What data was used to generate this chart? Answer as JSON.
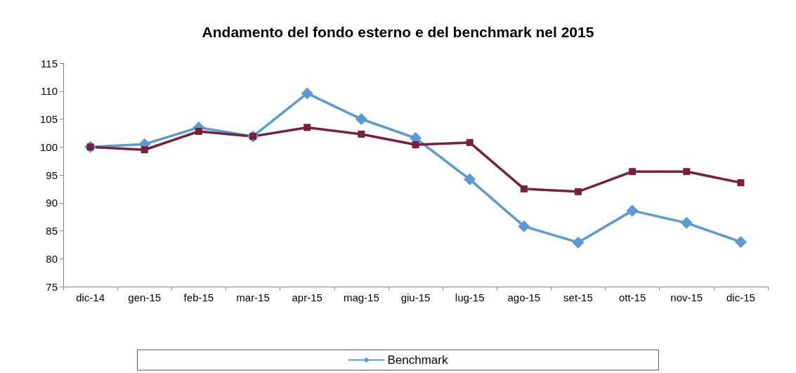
{
  "chart_data": {
    "type": "line",
    "title": "Andamento del fondo esterno e del benchmark nel 2015",
    "categories": [
      "dic-14",
      "gen-15",
      "feb-15",
      "mar-15",
      "apr-15",
      "mag-15",
      "giu-15",
      "lug-15",
      "ago-15",
      "set-15",
      "ott-15",
      "nov-15",
      "dic-15"
    ],
    "series": [
      {
        "name": "Benchmark",
        "color": "#5b9bd5",
        "marker": "diamond",
        "values": [
          100,
          100.5,
          103.5,
          101.9,
          109.6,
          105,
          101.6,
          94.2,
          85.8,
          82.9,
          88.6,
          86.4,
          83.0
        ]
      },
      {
        "color": "#7b1f3f",
        "marker": "square",
        "values": [
          100,
          99.5,
          102.8,
          101.9,
          103.5,
          102.3,
          100.4,
          100.8,
          92.5,
          92.0,
          95.6,
          95.6,
          93.6
        ]
      }
    ],
    "ylim": [
      75,
      115
    ],
    "yticks": [
      75,
      80,
      85,
      90,
      95,
      100,
      105,
      110,
      115
    ],
    "grid": false,
    "legend": "bottom",
    "line_style": "solid"
  }
}
